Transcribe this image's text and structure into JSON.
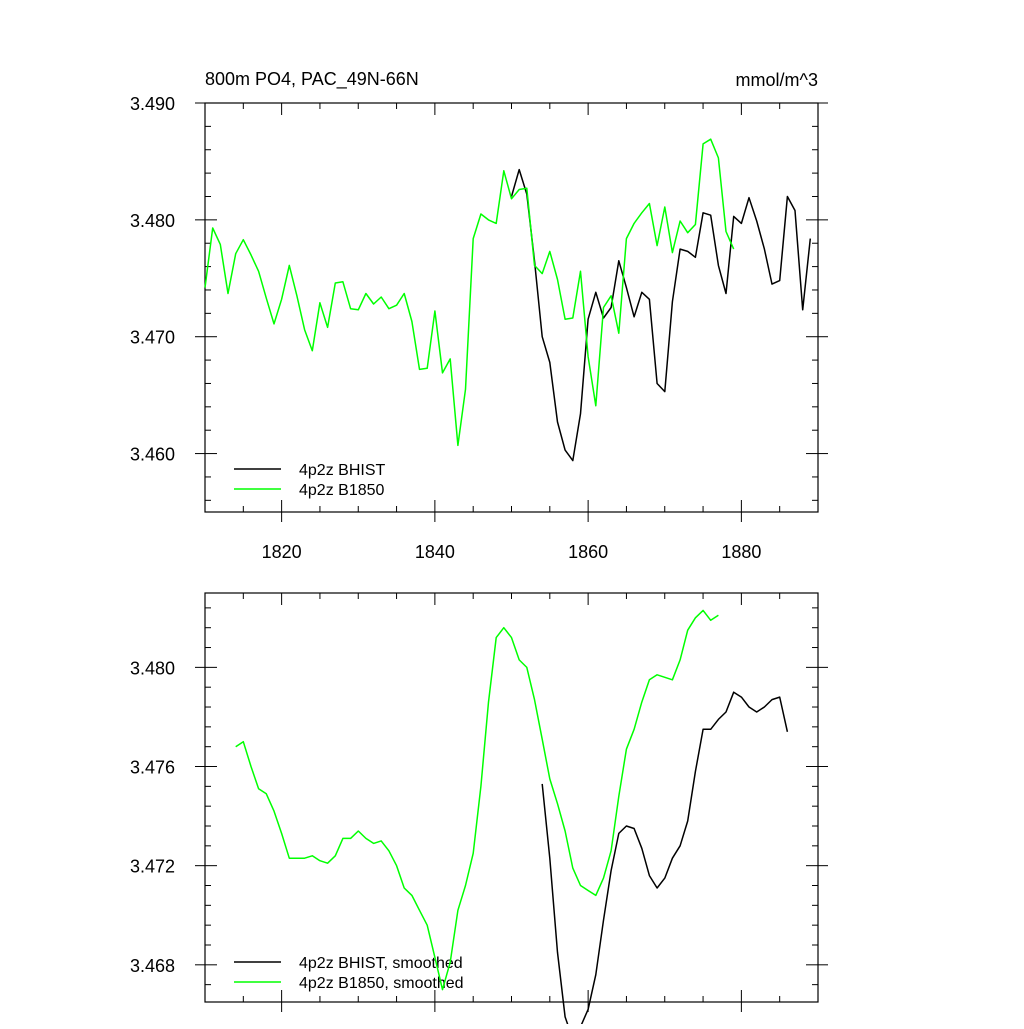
{
  "colors": {
    "bhist": "#000000",
    "b1850": "#00ff00",
    "frame": "#000000"
  },
  "chart_data": [
    {
      "type": "line",
      "title": "800m PO4, PAC_49N-66N",
      "units": "mmol/m^3",
      "xlabel": "",
      "ylabel": "",
      "xlim": [
        1810,
        1890
      ],
      "ylim": [
        3.455,
        3.49
      ],
      "xticks": [
        1820,
        1840,
        1860,
        1880
      ],
      "xticklabels": [
        "1820",
        "1840",
        "1860",
        "1880"
      ],
      "yticks": [
        3.46,
        3.47,
        3.48,
        3.49
      ],
      "yticklabels": [
        "3.460",
        "3.470",
        "3.480",
        "3.490"
      ],
      "legend_position": "bottom-left",
      "series": [
        {
          "name": "4p2z BHIST",
          "color": "black",
          "x": [
            1850,
            1851,
            1852,
            1853,
            1854,
            1855,
            1856,
            1857,
            1858,
            1859,
            1860,
            1861,
            1862,
            1863,
            1864,
            1865,
            1866,
            1867,
            1868,
            1869,
            1870,
            1871,
            1872,
            1873,
            1874,
            1875,
            1876,
            1877,
            1878,
            1879,
            1880,
            1881,
            1882,
            1883,
            1884,
            1885,
            1886,
            1887,
            1888,
            1889
          ],
          "y": [
            3.482,
            3.4843,
            3.4822,
            3.4765,
            3.47,
            3.4678,
            3.4627,
            3.4603,
            3.4594,
            3.4634,
            3.4715,
            3.4738,
            3.4716,
            3.4725,
            3.4765,
            3.4742,
            3.4717,
            3.4738,
            3.4732,
            3.466,
            3.4653,
            3.473,
            3.4775,
            3.4773,
            3.4768,
            3.4806,
            3.4804,
            3.4761,
            3.4737,
            3.4803,
            3.4797,
            3.4819,
            3.4799,
            3.4775,
            3.4745,
            3.4748,
            3.482,
            3.4808,
            3.4723,
            3.4784
          ]
        },
        {
          "name": "4p2z B1850",
          "color": "green",
          "x": [
            1810,
            1811,
            1812,
            1813,
            1814,
            1815,
            1816,
            1817,
            1818,
            1819,
            1820,
            1821,
            1822,
            1823,
            1824,
            1825,
            1826,
            1827,
            1828,
            1829,
            1830,
            1831,
            1832,
            1833,
            1834,
            1835,
            1836,
            1837,
            1838,
            1839,
            1840,
            1841,
            1842,
            1843,
            1844,
            1845,
            1846,
            1847,
            1848,
            1849,
            1850,
            1851,
            1852,
            1853,
            1854,
            1855,
            1856,
            1857,
            1858,
            1859,
            1860,
            1861,
            1862,
            1863,
            1864,
            1865,
            1866,
            1867,
            1868,
            1869,
            1870,
            1871,
            1872,
            1873,
            1874,
            1875,
            1876,
            1877,
            1878,
            1879
          ],
          "y": [
            3.4742,
            3.4793,
            3.4779,
            3.4737,
            3.4771,
            3.4783,
            3.477,
            3.4756,
            3.4733,
            3.4711,
            3.4732,
            3.4761,
            3.4735,
            3.4706,
            3.4688,
            3.4729,
            3.4708,
            3.4746,
            3.4747,
            3.4724,
            3.4723,
            3.4737,
            3.4728,
            3.4734,
            3.4724,
            3.4727,
            3.4737,
            3.4713,
            3.4672,
            3.4673,
            3.4722,
            3.4669,
            3.4681,
            3.4607,
            3.4655,
            3.4784,
            3.4805,
            3.48,
            3.4797,
            3.4842,
            3.4818,
            3.4826,
            3.4827,
            3.4761,
            3.4754,
            3.4773,
            3.4749,
            3.4715,
            3.4716,
            3.4756,
            3.4683,
            3.4641,
            3.4725,
            3.4735,
            3.4703,
            3.4784,
            3.4797,
            3.4806,
            3.4814,
            3.4778,
            3.4811,
            3.4772,
            3.4799,
            3.4789,
            3.4796,
            3.4865,
            3.4869,
            3.4853,
            3.479,
            3.4775
          ]
        }
      ]
    },
    {
      "type": "line",
      "title": "",
      "xlabel": "",
      "ylabel": "",
      "xlim": [
        1810,
        1890
      ],
      "ylim": [
        3.4665,
        3.483
      ],
      "xticks": [
        1820,
        1840,
        1860,
        1880
      ],
      "yticks": [
        3.468,
        3.472,
        3.476,
        3.48
      ],
      "yticklabels": [
        "3.468",
        "3.472",
        "3.476",
        "3.480"
      ],
      "legend_position": "bottom-left",
      "series": [
        {
          "name": "4p2z BHIST, smoothed",
          "color": "black",
          "x": [
            1854,
            1855,
            1856,
            1857,
            1858,
            1859,
            1860,
            1861,
            1862,
            1863,
            1864,
            1865,
            1866,
            1867,
            1868,
            1869,
            1870,
            1871,
            1872,
            1873,
            1874,
            1875,
            1876,
            1877,
            1878,
            1879,
            1880,
            1881,
            1882,
            1883,
            1884,
            1885,
            1886
          ],
          "y": [
            3.4753,
            3.4723,
            3.4685,
            3.4659,
            3.465,
            3.4655,
            3.4662,
            3.4676,
            3.4698,
            3.4718,
            3.4733,
            3.4736,
            3.4735,
            3.4727,
            3.4716,
            3.4711,
            3.4715,
            3.4723,
            3.4728,
            3.4738,
            3.4758,
            3.4775,
            3.4775,
            3.4779,
            3.4782,
            3.479,
            3.4788,
            3.4784,
            3.4782,
            3.4784,
            3.4787,
            3.4788,
            3.4774
          ]
        },
        {
          "name": "4p2z B1850, smoothed",
          "color": "green",
          "x": [
            1814,
            1815,
            1816,
            1817,
            1818,
            1819,
            1820,
            1821,
            1822,
            1823,
            1824,
            1825,
            1826,
            1827,
            1828,
            1829,
            1830,
            1831,
            1832,
            1833,
            1834,
            1835,
            1836,
            1837,
            1838,
            1839,
            1840,
            1841,
            1842,
            1843,
            1844,
            1845,
            1846,
            1847,
            1848,
            1849,
            1850,
            1851,
            1852,
            1853,
            1854,
            1855,
            1856,
            1857,
            1858,
            1859,
            1860,
            1861,
            1862,
            1863,
            1864,
            1865,
            1866,
            1867,
            1868,
            1869,
            1870,
            1871,
            1872,
            1873,
            1874,
            1875,
            1876,
            1877
          ],
          "y": [
            3.4768,
            3.477,
            3.476,
            3.4751,
            3.4749,
            3.4742,
            3.4733,
            3.4723,
            3.4723,
            3.4723,
            3.4724,
            3.4722,
            3.4721,
            3.4724,
            3.4731,
            3.4731,
            3.4734,
            3.4731,
            3.4729,
            3.473,
            3.4726,
            3.472,
            3.4711,
            3.4708,
            3.4702,
            3.4696,
            3.4683,
            3.467,
            3.4681,
            3.4702,
            3.4712,
            3.4725,
            3.4752,
            3.4786,
            3.4812,
            3.4816,
            3.4812,
            3.4803,
            3.48,
            3.4787,
            3.4771,
            3.4755,
            3.4745,
            3.4734,
            3.4719,
            3.4712,
            3.471,
            3.4708,
            3.4715,
            3.4726,
            3.4748,
            3.4767,
            3.4775,
            3.4786,
            3.4795,
            3.4797,
            3.4796,
            3.4795,
            3.4803,
            3.4815,
            3.482,
            3.4823,
            3.4819,
            3.4821
          ]
        }
      ]
    }
  ]
}
